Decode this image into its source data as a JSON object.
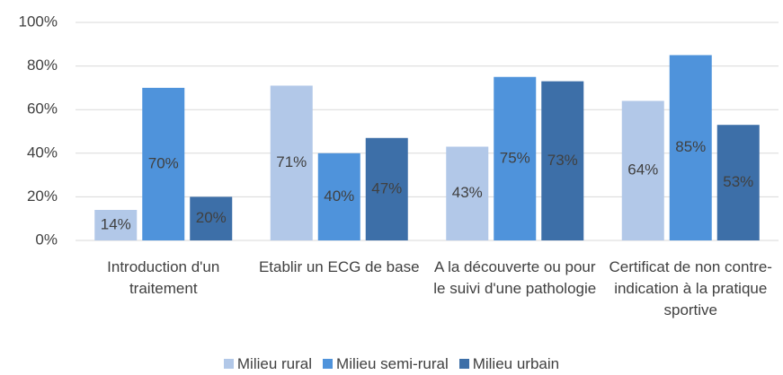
{
  "chart_data": {
    "type": "bar",
    "categories": [
      "Introduction d'un traitement",
      "Etablir un ECG de base",
      "A la découverte ou pour le suivi d'une pathologie",
      "Certificat de non contre-indication à la pratique sportive"
    ],
    "series": [
      {
        "name": "Milieu rural",
        "color": "#b2c8e8",
        "values": [
          14,
          71,
          43,
          64
        ],
        "value_labels": [
          "14%",
          "71%",
          "43%",
          "64%"
        ]
      },
      {
        "name": "Milieu semi-rural",
        "color": "#4f93db",
        "values": [
          70,
          40,
          75,
          85
        ],
        "value_labels": [
          "70%",
          "40%",
          "75%",
          "85%"
        ]
      },
      {
        "name": "Milieu urbain",
        "color": "#3d6fa8",
        "values": [
          20,
          47,
          73,
          53
        ],
        "value_labels": [
          "20%",
          "47%",
          "73%",
          "53%"
        ]
      }
    ],
    "ylim": [
      0,
      100
    ],
    "yticks": [
      {
        "value": 0,
        "label": "0%"
      },
      {
        "value": 20,
        "label": "20%"
      },
      {
        "value": 40,
        "label": "40%"
      },
      {
        "value": 60,
        "label": "60%"
      },
      {
        "value": 80,
        "label": "80%"
      },
      {
        "value": 100,
        "label": "100%"
      }
    ],
    "grid": true,
    "legend": "bottom"
  }
}
